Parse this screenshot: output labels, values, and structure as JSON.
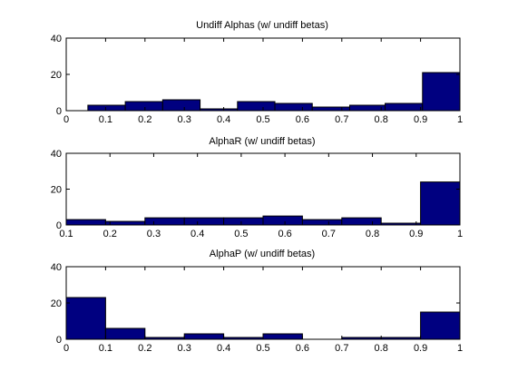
{
  "colors": {
    "bar_fill": "#000080",
    "bar_edge": "#000000",
    "axes": "#000000",
    "background": "#ffffff"
  },
  "chart_data": [
    {
      "type": "bar",
      "title": "Undiff Alphas (w/ undiff betas)",
      "xlabel": "",
      "ylabel": "",
      "xlim": [
        0,
        1
      ],
      "ylim": [
        0,
        40
      ],
      "xticks": [
        "0",
        "0.1",
        "0.2",
        "0.3",
        "0.4",
        "0.5",
        "0.6",
        "0.7",
        "0.8",
        "0.9",
        "1"
      ],
      "yticks": [
        "0",
        "20",
        "40"
      ],
      "bins": [
        {
          "x0": 0.055,
          "x1": 0.15,
          "value": 3
        },
        {
          "x0": 0.15,
          "x1": 0.245,
          "value": 5
        },
        {
          "x0": 0.245,
          "x1": 0.34,
          "value": 6
        },
        {
          "x0": 0.34,
          "x1": 0.435,
          "value": 1
        },
        {
          "x0": 0.435,
          "x1": 0.53,
          "value": 5
        },
        {
          "x0": 0.53,
          "x1": 0.625,
          "value": 4
        },
        {
          "x0": 0.625,
          "x1": 0.72,
          "value": 2
        },
        {
          "x0": 0.72,
          "x1": 0.81,
          "value": 3
        },
        {
          "x0": 0.81,
          "x1": 0.905,
          "value": 4
        },
        {
          "x0": 0.905,
          "x1": 1.0,
          "value": 21
        }
      ]
    },
    {
      "type": "bar",
      "title": "AlphaR (w/ undiff betas)",
      "xlabel": "",
      "ylabel": "",
      "xlim": [
        0.1,
        1
      ],
      "ylim": [
        0,
        40
      ],
      "xticks": [
        "0.1",
        "0.2",
        "0.3",
        "0.4",
        "0.5",
        "0.6",
        "0.7",
        "0.8",
        "0.9",
        "1"
      ],
      "yticks": [
        "0",
        "20",
        "40"
      ],
      "bins": [
        {
          "x0": 0.1,
          "x1": 0.19,
          "value": 3
        },
        {
          "x0": 0.19,
          "x1": 0.28,
          "value": 2
        },
        {
          "x0": 0.28,
          "x1": 0.37,
          "value": 4
        },
        {
          "x0": 0.37,
          "x1": 0.46,
          "value": 4
        },
        {
          "x0": 0.46,
          "x1": 0.55,
          "value": 4
        },
        {
          "x0": 0.55,
          "x1": 0.64,
          "value": 5
        },
        {
          "x0": 0.64,
          "x1": 0.73,
          "value": 3
        },
        {
          "x0": 0.73,
          "x1": 0.82,
          "value": 4
        },
        {
          "x0": 0.82,
          "x1": 0.91,
          "value": 1
        },
        {
          "x0": 0.91,
          "x1": 1.0,
          "value": 24
        }
      ]
    },
    {
      "type": "bar",
      "title": "AlphaP (w/ undiff betas)",
      "xlabel": "",
      "ylabel": "",
      "xlim": [
        0,
        1
      ],
      "ylim": [
        0,
        40
      ],
      "xticks": [
        "0",
        "0.1",
        "0.2",
        "0.3",
        "0.4",
        "0.5",
        "0.6",
        "0.7",
        "0.8",
        "0.9",
        "1"
      ],
      "yticks": [
        "0",
        "20",
        "40"
      ],
      "bins": [
        {
          "x0": 0.0,
          "x1": 0.1,
          "value": 23
        },
        {
          "x0": 0.1,
          "x1": 0.2,
          "value": 6
        },
        {
          "x0": 0.2,
          "x1": 0.3,
          "value": 1
        },
        {
          "x0": 0.3,
          "x1": 0.4,
          "value": 3
        },
        {
          "x0": 0.4,
          "x1": 0.5,
          "value": 1
        },
        {
          "x0": 0.5,
          "x1": 0.6,
          "value": 3
        },
        {
          "x0": 0.6,
          "x1": 0.7,
          "value": 0
        },
        {
          "x0": 0.7,
          "x1": 0.8,
          "value": 1
        },
        {
          "x0": 0.8,
          "x1": 0.9,
          "value": 1
        },
        {
          "x0": 0.9,
          "x1": 1.0,
          "value": 15
        }
      ]
    }
  ]
}
